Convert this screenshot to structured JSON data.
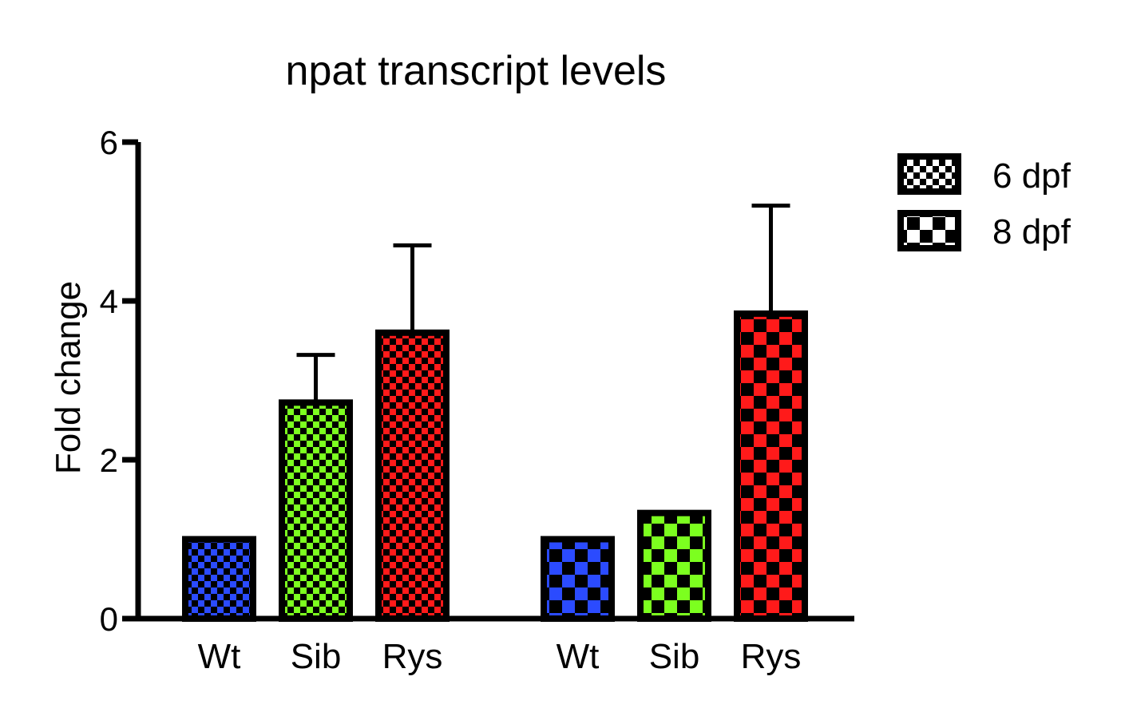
{
  "chart_data": {
    "type": "bar",
    "title": "npat transcript levels",
    "xlabel": "",
    "ylabel": "Fold change",
    "ylim": [
      0,
      6
    ],
    "yticks": [
      0,
      2,
      4,
      6
    ],
    "grid": false,
    "legend_position": "top-right",
    "groups": [
      {
        "name": "6 dpf",
        "pattern": "fine-checker",
        "bars": [
          {
            "category": "Wt",
            "value": 1.0,
            "error": null,
            "color": "#2b4bff"
          },
          {
            "category": "Sib",
            "value": 2.72,
            "error": 0.6,
            "color": "#7cff1f"
          },
          {
            "category": "Rys",
            "value": 3.6,
            "error": 1.1,
            "color": "#ff1a1a"
          }
        ]
      },
      {
        "name": "8 dpf",
        "pattern": "coarse-checker",
        "bars": [
          {
            "category": "Wt",
            "value": 1.0,
            "error": null,
            "color": "#2b4bff"
          },
          {
            "category": "Sib",
            "value": 1.33,
            "error": null,
            "color": "#7cff1f"
          },
          {
            "category": "Rys",
            "value": 3.84,
            "error": 1.36,
            "color": "#ff1a1a"
          }
        ]
      }
    ],
    "legend": [
      {
        "label": "6 dpf",
        "pattern": "fine-checker"
      },
      {
        "label": "8 dpf",
        "pattern": "coarse-checker"
      }
    ]
  }
}
